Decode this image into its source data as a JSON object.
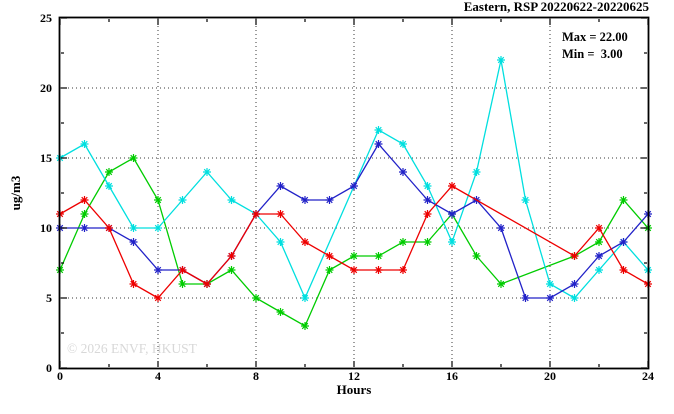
{
  "chart_data": {
    "type": "line",
    "title": "Eastern, RSP 20220622-20220625",
    "xlabel": "Hours",
    "ylabel": "ug/m3",
    "legend": {
      "position": "top-right",
      "max_label": "Max = 22.00",
      "min_label": "Min =  3.00"
    },
    "watermark": "© 2026 ENVF, HKUST",
    "xlim": [
      0,
      24
    ],
    "ylim": [
      0,
      25
    ],
    "x_major_ticks": [
      0,
      4,
      8,
      12,
      16,
      20,
      24
    ],
    "x_minor_ticks": [
      2,
      6,
      10,
      14,
      18,
      22
    ],
    "y_major_ticks": [
      0,
      5,
      10,
      15,
      20,
      25
    ],
    "y_minor_ticks": [
      2.5,
      7.5,
      12.5,
      17.5,
      22.5
    ],
    "x_gridlines": [
      4,
      8,
      12,
      16,
      20
    ],
    "y_gridlines": [
      5,
      10,
      15,
      20
    ],
    "grid_style": "dotted",
    "marker": "asterisk",
    "series": [
      {
        "name": "green",
        "color": "#00cc00",
        "points": [
          [
            0,
            7
          ],
          [
            1,
            11
          ],
          [
            2,
            14
          ],
          [
            3,
            15
          ],
          [
            4,
            12
          ],
          [
            5,
            6
          ],
          [
            6,
            6
          ],
          [
            7,
            7
          ],
          [
            8,
            5
          ],
          [
            9,
            4
          ],
          [
            10,
            3
          ],
          [
            11,
            7
          ],
          [
            12,
            8
          ],
          [
            13,
            8
          ],
          [
            14,
            9
          ],
          [
            15,
            9
          ],
          [
            16,
            11
          ],
          [
            17,
            8
          ],
          [
            18,
            6
          ],
          [
            21,
            8
          ],
          [
            22,
            9
          ],
          [
            23,
            12
          ],
          [
            24,
            10
          ]
        ]
      },
      {
        "name": "cyan",
        "color": "#00dfdf",
        "points": [
          [
            0,
            15
          ],
          [
            1,
            16
          ],
          [
            2,
            13
          ],
          [
            3,
            10
          ],
          [
            4,
            10
          ],
          [
            5,
            12
          ],
          [
            6,
            14
          ],
          [
            7,
            12
          ],
          [
            8,
            11
          ],
          [
            9,
            9
          ],
          [
            10,
            5
          ],
          [
            13,
            17
          ],
          [
            14,
            16
          ],
          [
            15,
            13
          ],
          [
            16,
            9
          ],
          [
            17,
            14
          ],
          [
            18,
            22
          ],
          [
            19,
            12
          ],
          [
            20,
            6
          ],
          [
            21,
            5
          ],
          [
            22,
            7
          ],
          [
            23,
            9
          ],
          [
            24,
            7
          ]
        ]
      },
      {
        "name": "blue",
        "color": "#2222c8",
        "points": [
          [
            0,
            10
          ],
          [
            1,
            10
          ],
          [
            2,
            10
          ],
          [
            3,
            9
          ],
          [
            4,
            7
          ],
          [
            5,
            7
          ],
          [
            6,
            6
          ],
          [
            7,
            8
          ],
          [
            8,
            11
          ],
          [
            9,
            13
          ],
          [
            10,
            12
          ],
          [
            11,
            12
          ],
          [
            12,
            13
          ],
          [
            13,
            16
          ],
          [
            14,
            14
          ],
          [
            15,
            12
          ],
          [
            16,
            11
          ],
          [
            17,
            12
          ],
          [
            18,
            10
          ],
          [
            19,
            5
          ],
          [
            20,
            5
          ],
          [
            21,
            6
          ],
          [
            22,
            8
          ],
          [
            23,
            9
          ],
          [
            24,
            11
          ]
        ]
      },
      {
        "name": "red",
        "color": "#ee0000",
        "points": [
          [
            0,
            11
          ],
          [
            1,
            12
          ],
          [
            2,
            10
          ],
          [
            3,
            6
          ],
          [
            4,
            5
          ],
          [
            5,
            7
          ],
          [
            6,
            6
          ],
          [
            7,
            8
          ],
          [
            8,
            11
          ],
          [
            9,
            11
          ],
          [
            10,
            9
          ],
          [
            11,
            8
          ],
          [
            12,
            7
          ],
          [
            13,
            7
          ],
          [
            14,
            7
          ],
          [
            15,
            11
          ],
          [
            16,
            13
          ],
          [
            21,
            8
          ],
          [
            22,
            10
          ],
          [
            23,
            7
          ],
          [
            24,
            6
          ]
        ]
      }
    ]
  }
}
